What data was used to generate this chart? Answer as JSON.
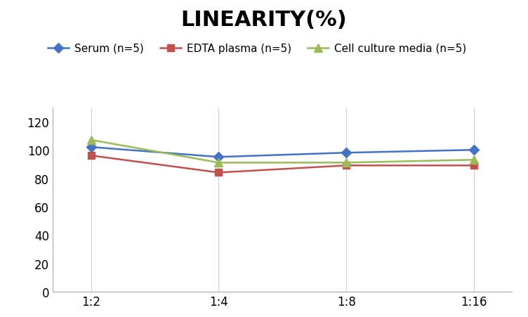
{
  "title": "LINEARITY(%)",
  "x_labels": [
    "1:2",
    "1:4",
    "1:8",
    "1:16"
  ],
  "x_positions": [
    0,
    1,
    2,
    3
  ],
  "series": [
    {
      "label": "Serum (n=5)",
      "values": [
        102,
        95,
        98,
        100
      ],
      "color": "#4472C4",
      "marker": "D",
      "markersize": 7,
      "linewidth": 1.8
    },
    {
      "label": "EDTA plasma (n=5)",
      "values": [
        96,
        84,
        89,
        89
      ],
      "color": "#C0504D",
      "marker": "s",
      "markersize": 7,
      "linewidth": 1.8
    },
    {
      "label": "Cell culture media (n=5)",
      "values": [
        107,
        91,
        91,
        93
      ],
      "color": "#9BBB59",
      "marker": "^",
      "markersize": 8,
      "linewidth": 1.8
    }
  ],
  "ylim": [
    0,
    130
  ],
  "yticks": [
    0,
    20,
    40,
    60,
    80,
    100,
    120
  ],
  "background_color": "#ffffff",
  "grid_color": "#d0d0d0",
  "title_fontsize": 22,
  "legend_fontsize": 11,
  "tick_fontsize": 12
}
